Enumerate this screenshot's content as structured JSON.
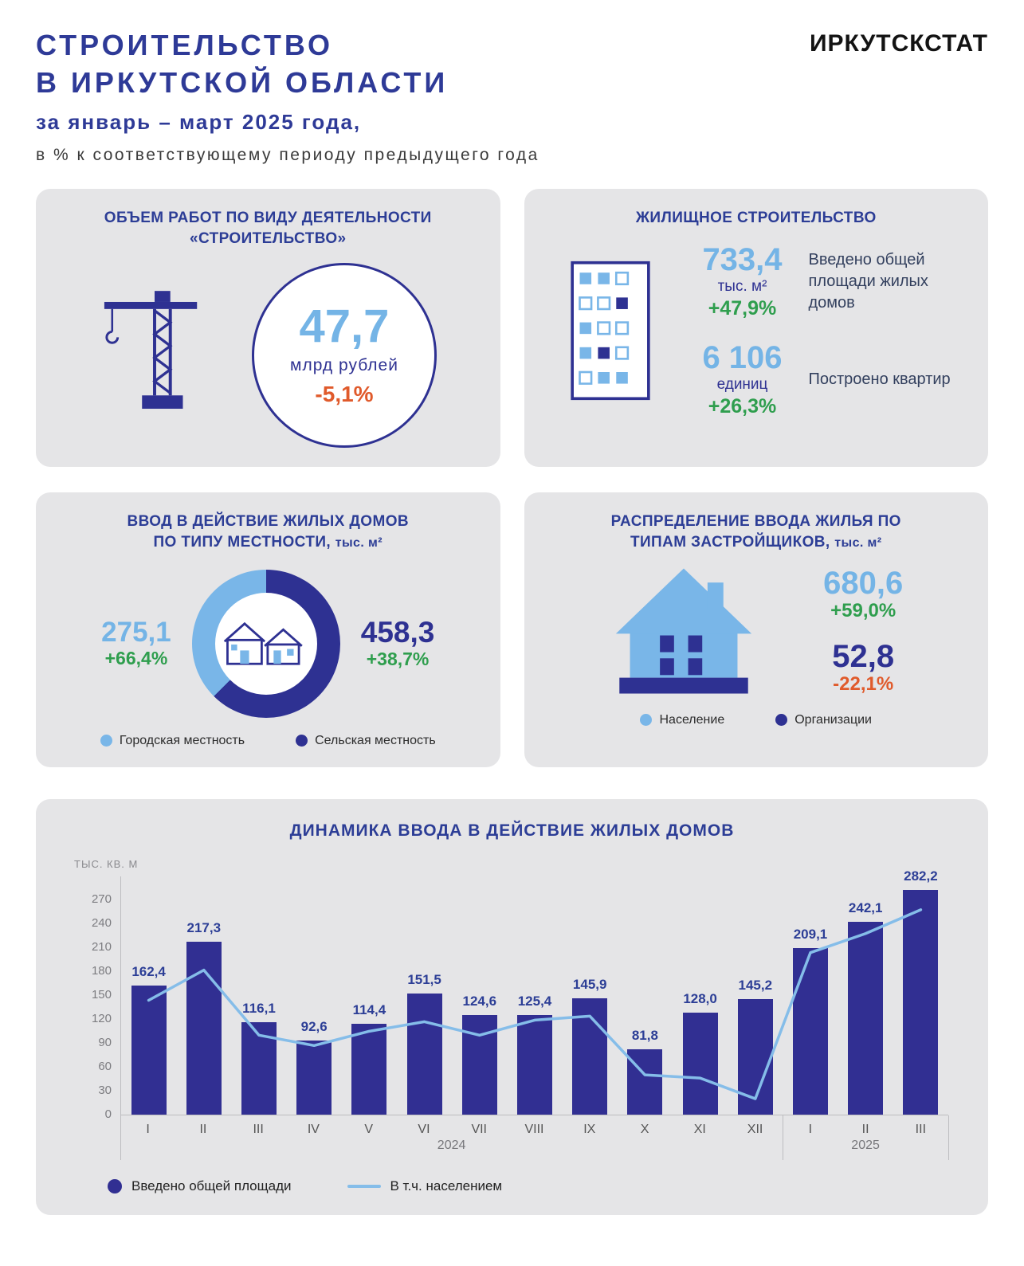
{
  "header": {
    "title_line1": "СТРОИТЕЛЬСТВО",
    "title_line2": "В ИРКУТСКОЙ ОБЛАСТИ",
    "subtitle": "за январь – март 2025 года,",
    "note": "в % к соответствующему периоду предыдущего года",
    "brand": "ИРКУТСКСТАТ"
  },
  "volume_panel": {
    "title_line1": "ОБЪЕМ РАБОТ ПО ВИДУ ДЕЯТЕЛЬНОСТИ",
    "title_line2": "«СТРОИТЕЛЬСТВО»",
    "value": "47,7",
    "unit": "млрд  рублей",
    "change": "-5,1%"
  },
  "housing_panel": {
    "title": "ЖИЛИЩНОЕ  СТРОИТЕЛЬСТВО",
    "area": {
      "value": "733,4",
      "unit": "тыс. м²",
      "change": "+47,9%",
      "label": "Введено общей  площади жилых  домов"
    },
    "apartments": {
      "value": "6 106",
      "unit": "единиц",
      "change": "+26,3%",
      "label": "Построено квартир"
    }
  },
  "developers_panel": {
    "title_line1": "РАСПРЕДЕЛЕНИЕ  ВВОДА  ЖИЛЬЯ  ПО",
    "title_line2": "ТИПАМ  ЗАСТРОЙЩИКОВ,",
    "title_unit": "тыс. м²",
    "population": {
      "value": "680,6",
      "change": "+59,0%",
      "legend": "Население"
    },
    "organizations": {
      "value": "52,8",
      "change": "-22,1%",
      "legend": "Организации"
    }
  },
  "chart_data": [
    {
      "type": "bar",
      "title": "ДИНАМИКА  ВВОДА  В  ДЕЙСТВИЕ  ЖИЛЫХ  ДОМОВ",
      "ylabel": "ТЫС. КВ. М",
      "yticks": [
        0,
        30,
        60,
        90,
        120,
        150,
        180,
        210,
        240,
        270
      ],
      "ylim": [
        0,
        300
      ],
      "grid": false,
      "legend_position": "bottom",
      "categories": [
        "I",
        "II",
        "III",
        "IV",
        "V",
        "VI",
        "VII",
        "VIII",
        "IX",
        "X",
        "XI",
        "XII",
        "I",
        "II",
        "III"
      ],
      "year_groups": [
        {
          "label": "2024",
          "months": 12
        },
        {
          "label": "2025",
          "months": 3
        }
      ],
      "series": [
        {
          "name": "Введено общей  площади",
          "type": "bar",
          "color": "#312f92",
          "values": [
            162.4,
            217.3,
            116.1,
            92.6,
            114.4,
            151.5,
            124.6,
            125.4,
            145.9,
            81.8,
            128.0,
            145.2,
            209.1,
            242.1,
            282.2
          ],
          "labels": [
            "162,4",
            "217,3",
            "116,1",
            "92,6",
            "114,4",
            "151,5",
            "124,6",
            "125,4",
            "145,9",
            "81,8",
            "128,0",
            "145,2",
            "209,1",
            "242,1",
            "282,2"
          ]
        },
        {
          "name": "В т.ч. населением",
          "type": "line",
          "color": "#85bde9",
          "values": [
            144,
            182,
            100,
            87,
            105,
            117,
            100,
            119,
            124,
            50,
            46,
            20,
            204,
            228,
            258
          ]
        }
      ]
    },
    {
      "type": "pie",
      "title_line1": "ВВОД В ДЕЙСТВИЕ ЖИЛЫХ ДОМОВ",
      "title_line2": "ПО ТИПУ МЕСТНОСТИ,",
      "unit": "тыс. м²",
      "total": 733.4,
      "slices": [
        {
          "label": "Городская местность",
          "value": 275.1,
          "display": "275,1",
          "change": "+66,4%",
          "color": "#79b6e8"
        },
        {
          "label": "Сельская местность",
          "value": 458.3,
          "display": "458,3",
          "change": "+38,7%",
          "color": "#2e3192"
        }
      ]
    }
  ],
  "colors": {
    "navy": "#2e3192",
    "light_blue": "#74b4e6",
    "green": "#2f9e4e",
    "orange": "#e05a2b",
    "panel_bg": "#e5e5e7"
  }
}
